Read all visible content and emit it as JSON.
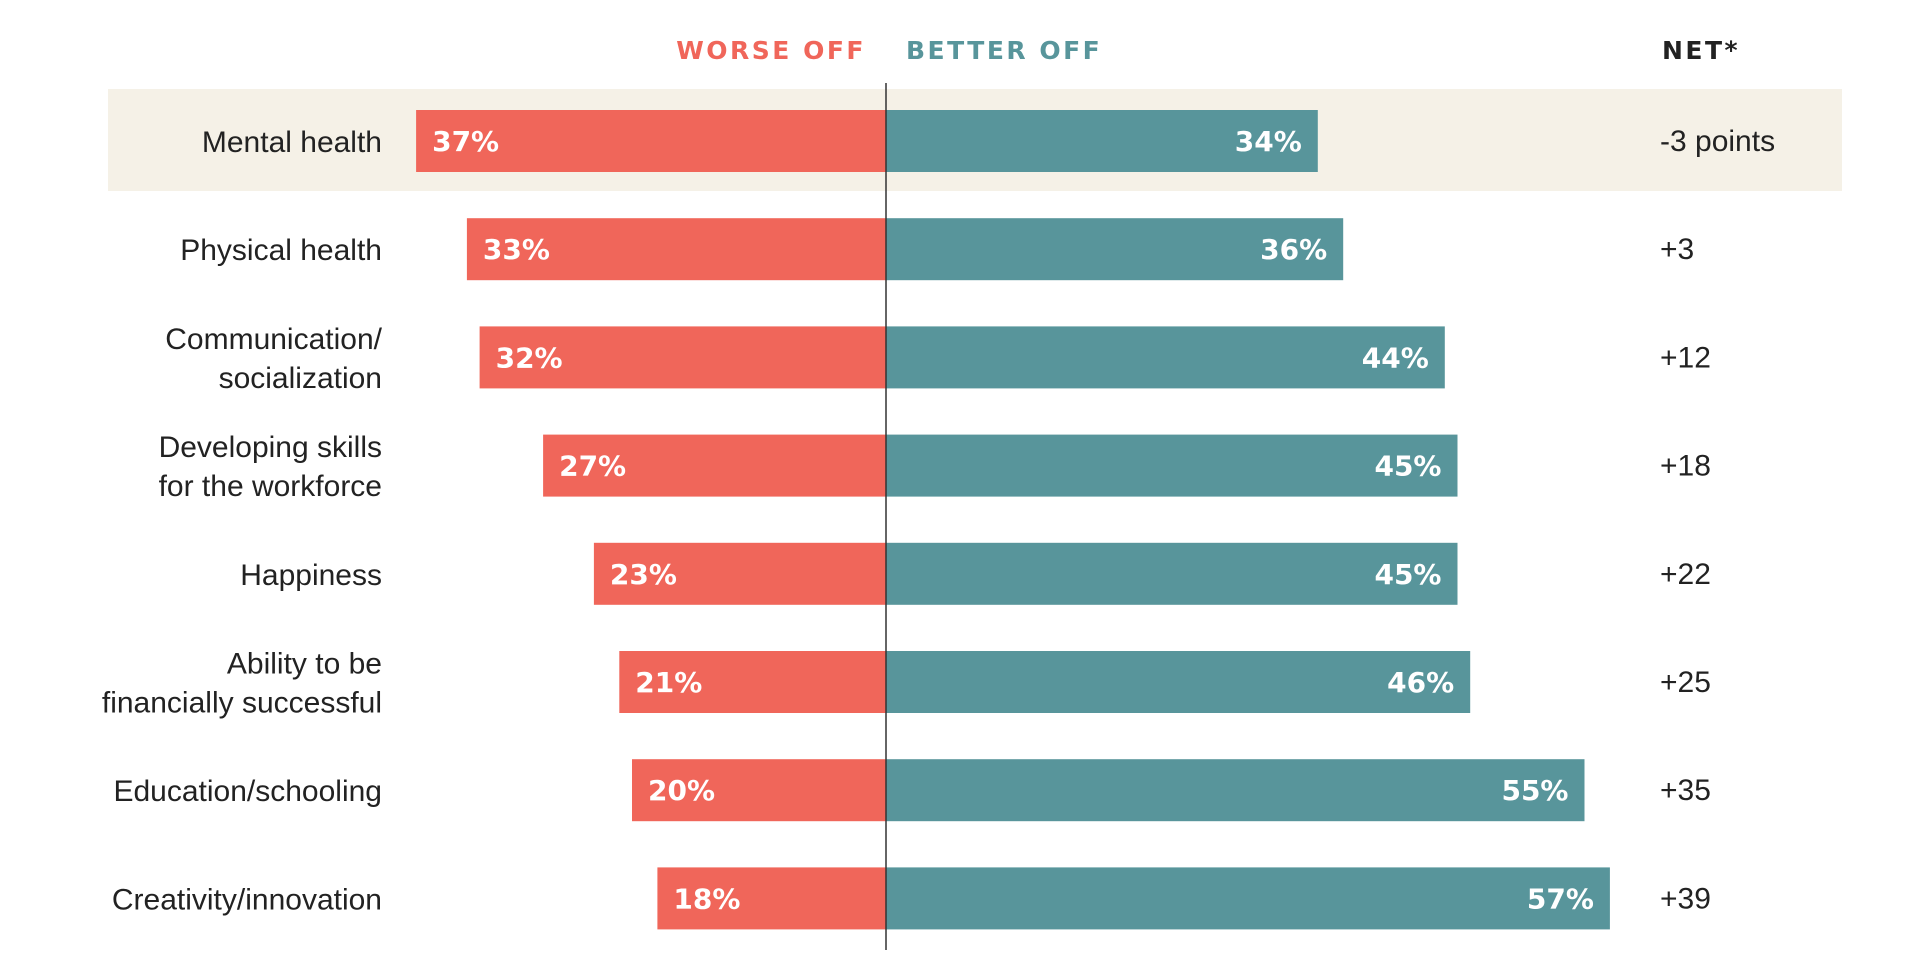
{
  "chart_data": {
    "type": "bar",
    "orientation": "horizontal-diverging",
    "headers": {
      "worse": "WORSE OFF",
      "better": "BETTER OFF",
      "net": "NET*"
    },
    "categories": [
      [
        "Mental health"
      ],
      [
        "Physical health"
      ],
      [
        "Communication/",
        "socialization"
      ],
      [
        "Developing skills",
        "for the workforce"
      ],
      [
        "Happiness"
      ],
      [
        "Ability to be",
        "financially successful"
      ],
      [
        "Education/schooling"
      ],
      [
        "Creativity/innovation"
      ]
    ],
    "series": [
      {
        "name": "WORSE OFF",
        "values": [
          37,
          33,
          32,
          27,
          23,
          21,
          20,
          18
        ],
        "labels": [
          "37%",
          "33%",
          "32%",
          "27%",
          "23%",
          "21%",
          "20%",
          "18%"
        ]
      },
      {
        "name": "BETTER OFF",
        "values": [
          34,
          36,
          44,
          45,
          45,
          46,
          55,
          57
        ],
        "labels": [
          "34%",
          "36%",
          "44%",
          "45%",
          "45%",
          "46%",
          "55%",
          "57%"
        ]
      }
    ],
    "net": [
      "-3 points",
      "+3",
      "+12",
      "+18",
      "+22",
      "+25",
      "+35",
      "+39"
    ],
    "highlighted_row": 0,
    "xlim": [
      -37,
      57
    ],
    "colors": {
      "worse": "#f0665a",
      "better": "#58959b",
      "highlight": "#f5f1e7",
      "axis": "#333333",
      "text": "#222222"
    }
  }
}
